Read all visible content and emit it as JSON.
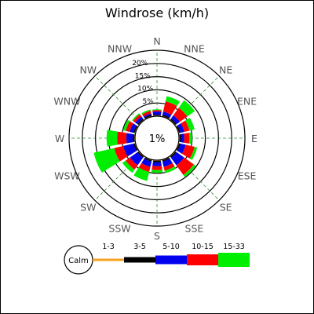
{
  "chart_data": {
    "type": "windrose",
    "title": "Windrose (km/h)",
    "calm_label": "1%",
    "directions": [
      "N",
      "NNE",
      "NE",
      "ENE",
      "E",
      "ESE",
      "SE",
      "SSE",
      "S",
      "SSW",
      "SW",
      "WSW",
      "W",
      "WNW",
      "NW",
      "NNW"
    ],
    "ring_labels": [
      "5%",
      "10%",
      "15%",
      "20%"
    ],
    "ring_values": [
      5,
      10,
      15,
      20
    ],
    "rmax_pct": 25,
    "speed_bins": [
      {
        "name": "1-3",
        "color": "#f5a020"
      },
      {
        "name": "3-5",
        "color": "#000000"
      },
      {
        "name": "5-10",
        "color": "#0000ee"
      },
      {
        "name": "10-15",
        "color": "#ff0000"
      },
      {
        "name": "15-33",
        "color": "#00ee00"
      }
    ],
    "frequencies_pct": [
      [
        0.3,
        0.3,
        1.2,
        0.5,
        0.3
      ],
      [
        0.3,
        0.5,
        1.2,
        4.0,
        2.0
      ],
      [
        0.3,
        0.5,
        1.5,
        3.5,
        3.5
      ],
      [
        0.3,
        0.5,
        1.5,
        2.0,
        2.0
      ],
      [
        0.3,
        0.5,
        1.2,
        2.0,
        1.0
      ],
      [
        0.3,
        0.5,
        2.0,
        3.5,
        1.0
      ],
      [
        0.3,
        0.5,
        3.5,
        4.5,
        1.0
      ],
      [
        0.3,
        0.5,
        2.0,
        1.5,
        1.0
      ],
      [
        0.3,
        0.5,
        1.5,
        1.5,
        1.0
      ],
      [
        0.3,
        0.5,
        2.0,
        2.0,
        3.5
      ],
      [
        0.3,
        0.5,
        3.5,
        2.0,
        1.5
      ],
      [
        0.3,
        0.5,
        4.0,
        3.5,
        8.0
      ],
      [
        0.3,
        0.5,
        2.5,
        3.5,
        4.0
      ],
      [
        0.3,
        0.5,
        1.5,
        1.5,
        1.0
      ],
      [
        0.3,
        0.5,
        1.0,
        1.0,
        0.5
      ],
      [
        0.3,
        0.5,
        0.5,
        1.0,
        0.5
      ]
    ],
    "legend": {
      "calm": "Calm",
      "labels": [
        "1-3",
        "3-5",
        "5-10",
        "10-15",
        "15-33"
      ]
    }
  }
}
